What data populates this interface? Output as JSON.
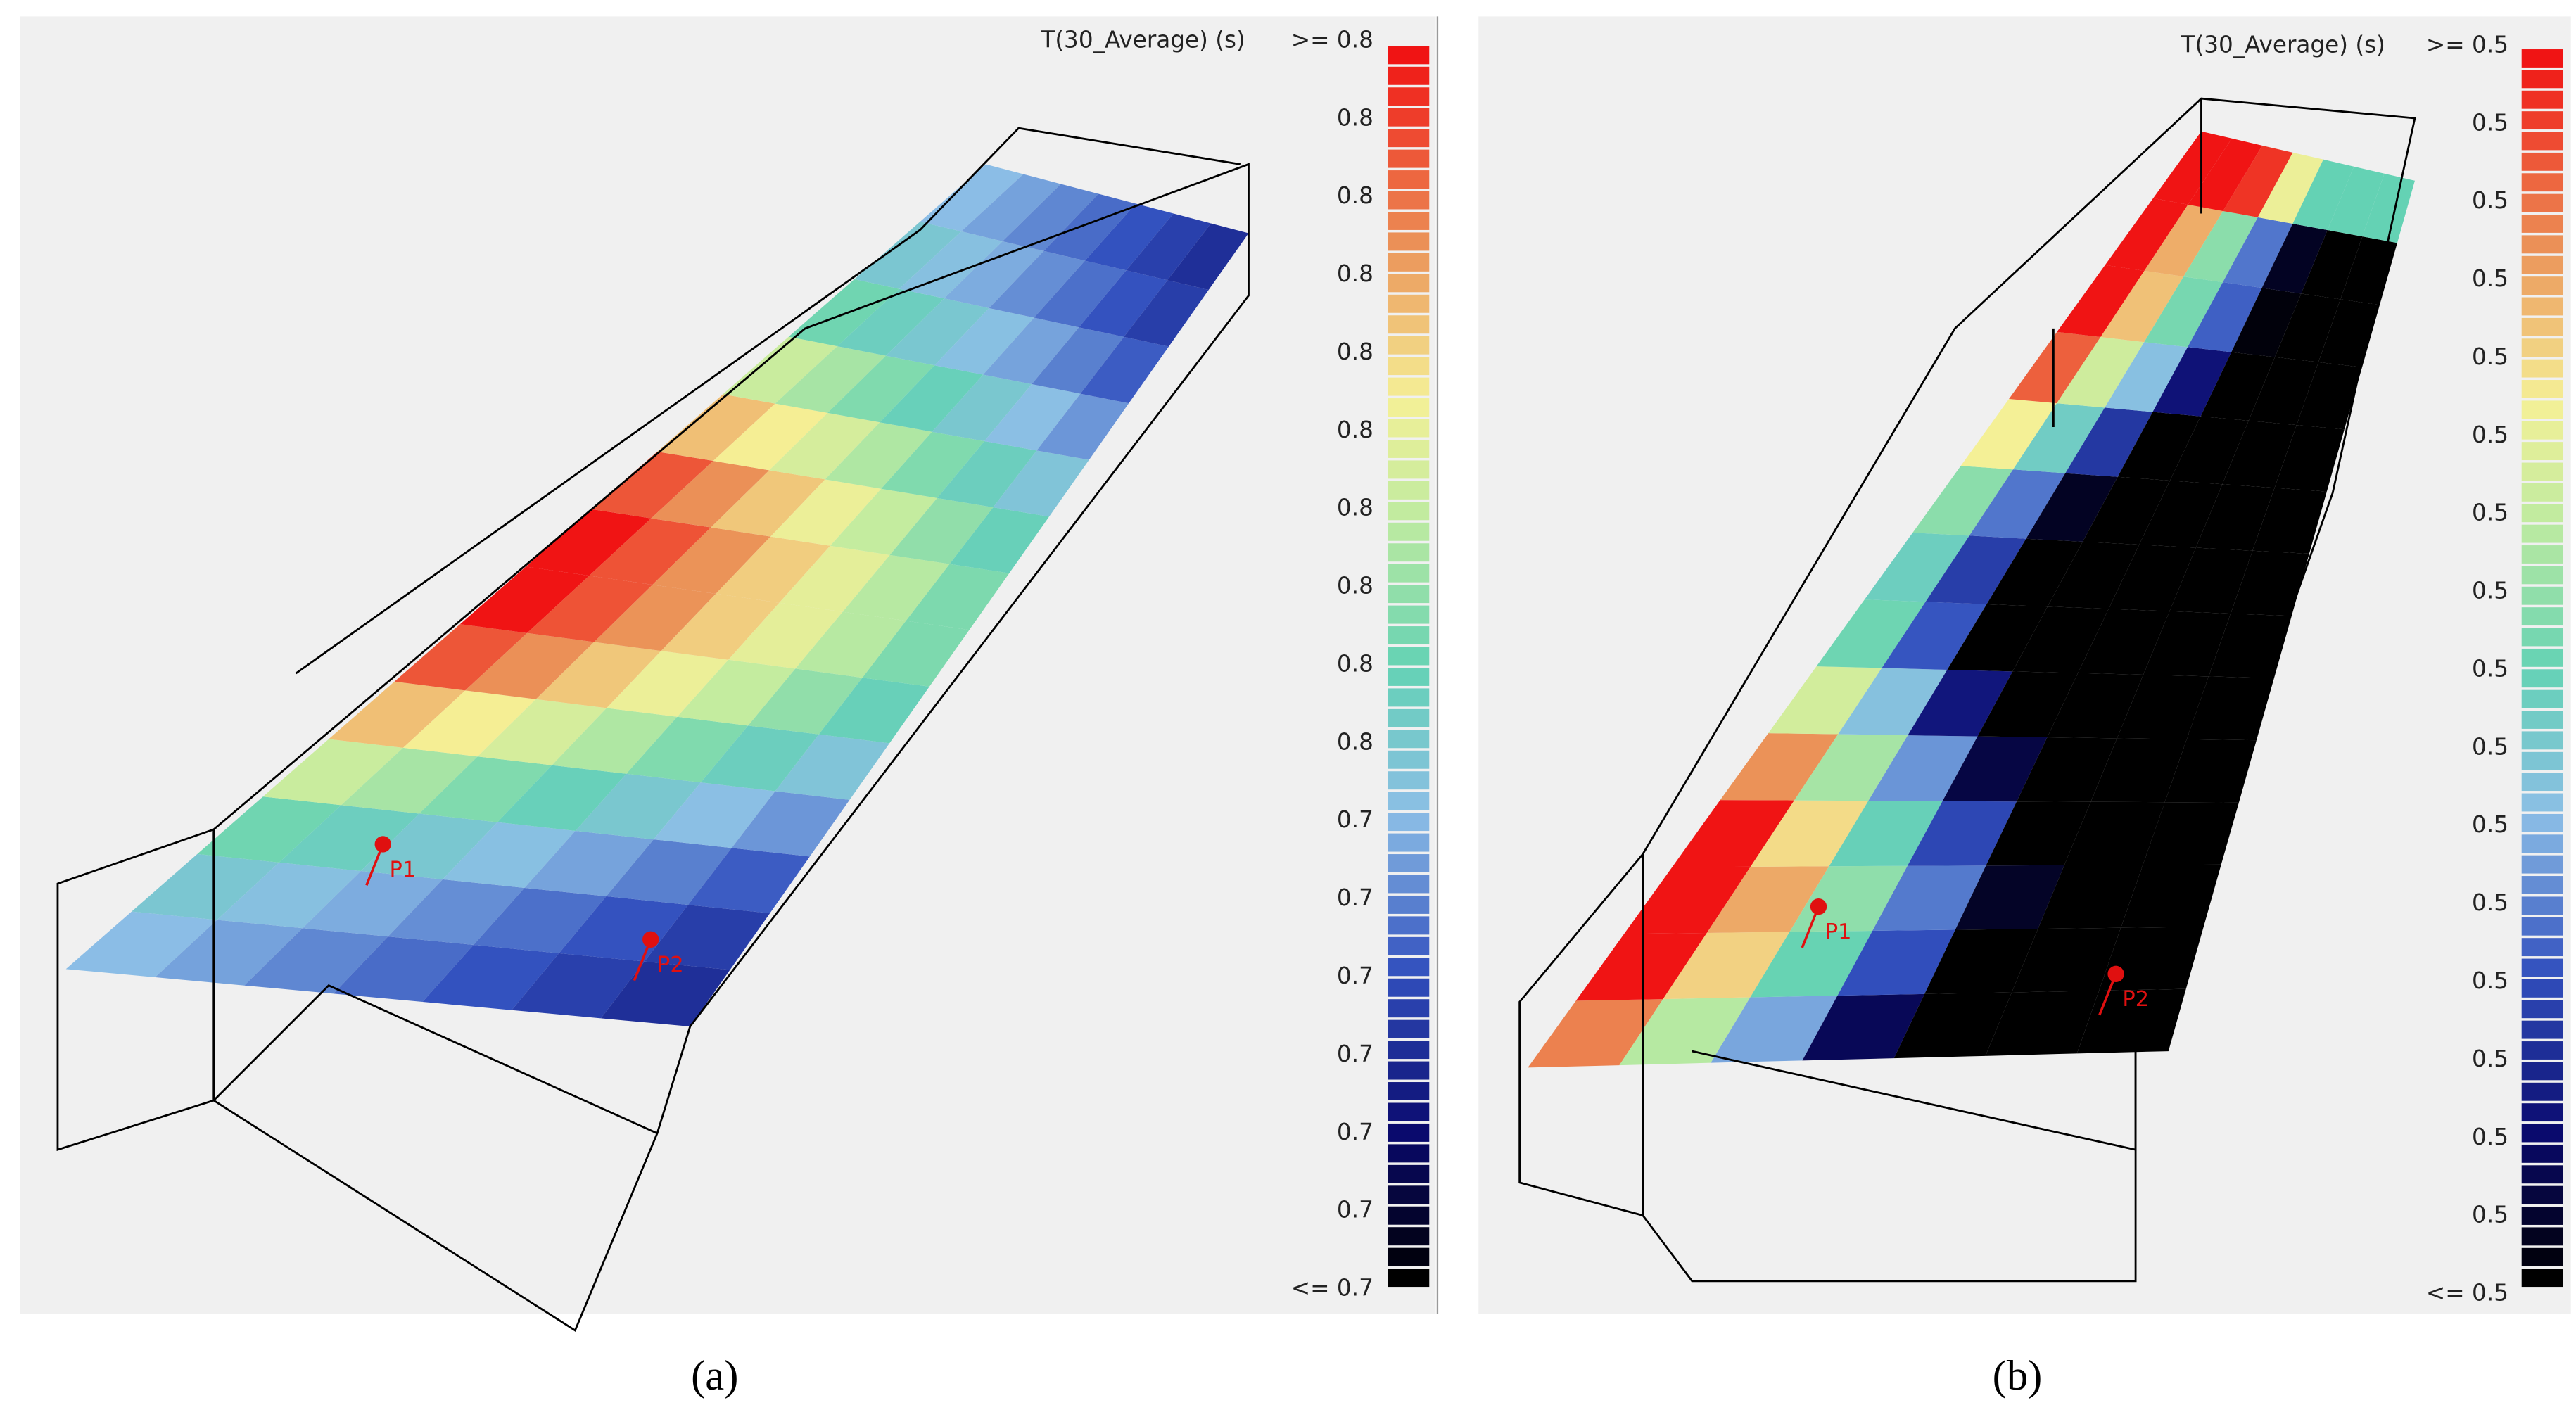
{
  "panels": [
    {
      "label": "(a)",
      "legend": {
        "title": "T(30_Average) (s)",
        "labels": [
          ">= 0.8",
          "0.8",
          "0.8",
          "0.8",
          "0.8",
          "0.8",
          "0.8",
          "0.8",
          "0.8",
          "0.8",
          "0.7",
          "0.7",
          "0.7",
          "0.7",
          "0.7",
          "0.7",
          "<= 0.7"
        ]
      },
      "points": [
        "P1",
        "P2"
      ]
    },
    {
      "label": "(b)",
      "legend": {
        "title": "T(30_Average) (s)",
        "labels": [
          ">= 0.5",
          "0.5",
          "0.5",
          "0.5",
          "0.5",
          "0.5",
          "0.5",
          "0.5",
          "0.5",
          "0.5",
          "0.5",
          "0.5",
          "0.5",
          "0.5",
          "0.5",
          "0.5",
          "<= 0.5"
        ]
      },
      "points": [
        "P1",
        "P2"
      ]
    }
  ]
}
